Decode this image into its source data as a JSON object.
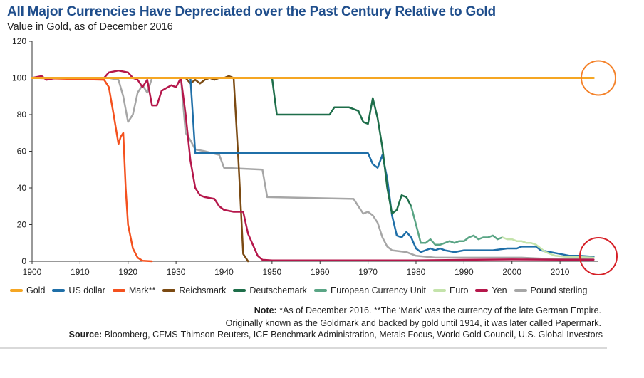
{
  "title": "All Major Currencies Have Depreciated over the Past Century Relative to Gold",
  "subtitle": "Value in Gold, as of December 2016",
  "note_label": "Note:",
  "note_line1": " *As of December 2016. **The ‘Mark’ was the currency of the late German Empire.",
  "note_line2": "Originally known as the Goldmark and backed by gold until 1914, it was later called Papermark.",
  "source_label": "Source:",
  "source_text": " Bloomberg, CFMS-Thimson Reuters, ICE Benchmark Administration, Metals Focus, World Gold Council, U.S. Global Investors",
  "chart_data": {
    "type": "line",
    "title": "All Major Currencies Have Depreciated over the Past Century Relative to Gold",
    "subtitle": "Value in Gold, as of December 2016",
    "xlim": [
      1900,
      2018
    ],
    "ylim": [
      0,
      120
    ],
    "xticks": [
      1900,
      1910,
      1920,
      1930,
      1940,
      1950,
      1960,
      1970,
      1980,
      1990,
      2000,
      2010
    ],
    "yticks": [
      0,
      20,
      40,
      60,
      80,
      100,
      120
    ],
    "grid": false,
    "legend_position": "bottom",
    "series": [
      {
        "name": "Gold",
        "color": "#f5a623",
        "width": 3,
        "points": [
          [
            1900,
            100
          ],
          [
            2017,
            100
          ]
        ]
      },
      {
        "name": "Pound sterling",
        "color": "#a6a6a6",
        "width": 2.5,
        "points": [
          [
            1916,
            100
          ],
          [
            1918,
            99
          ],
          [
            1919,
            90
          ],
          [
            1920,
            76
          ],
          [
            1921,
            80
          ],
          [
            1922,
            92
          ],
          [
            1923,
            96
          ],
          [
            1924,
            92
          ],
          [
            1925,
            100
          ],
          [
            1931,
            100
          ],
          [
            1932,
            70
          ],
          [
            1933,
            66
          ],
          [
            1934,
            61
          ],
          [
            1936,
            60
          ],
          [
            1939,
            58
          ],
          [
            1940,
            51
          ],
          [
            1948,
            50
          ],
          [
            1949,
            35
          ],
          [
            1967,
            34
          ],
          [
            1968,
            30
          ],
          [
            1969,
            26
          ],
          [
            1970,
            27
          ],
          [
            1971,
            25
          ],
          [
            1972,
            21
          ],
          [
            1973,
            13
          ],
          [
            1974,
            8
          ],
          [
            1975,
            6
          ],
          [
            1978,
            5
          ],
          [
            1980,
            3
          ],
          [
            1984,
            2
          ],
          [
            1988,
            2
          ],
          [
            1995,
            2
          ],
          [
            2002,
            2
          ],
          [
            2008,
            1.2
          ],
          [
            2017,
            1
          ]
        ]
      },
      {
        "name": "Reichsmark",
        "color": "#7b4a12",
        "width": 2.5,
        "points": [
          [
            1932,
            100
          ],
          [
            1933,
            97
          ],
          [
            1934,
            99
          ],
          [
            1935,
            97
          ],
          [
            1936,
            99
          ],
          [
            1937,
            100
          ],
          [
            1938,
            99
          ],
          [
            1939,
            100
          ],
          [
            1940,
            100
          ],
          [
            1941,
            101
          ],
          [
            1942,
            100
          ],
          [
            1943,
            55
          ],
          [
            1944,
            4
          ],
          [
            1945,
            0
          ]
        ]
      },
      {
        "name": "Mark**",
        "color": "#f4511e",
        "width": 2.5,
        "points": [
          [
            1900,
            100
          ],
          [
            1915,
            99
          ],
          [
            1916,
            95
          ],
          [
            1917,
            80
          ],
          [
            1918,
            64
          ],
          [
            1918.5,
            68
          ],
          [
            1919,
            70
          ],
          [
            1919.5,
            40
          ],
          [
            1920,
            20
          ],
          [
            1921,
            7
          ],
          [
            1922,
            2
          ],
          [
            1923,
            0.3
          ],
          [
            1925,
            0
          ]
        ]
      },
      {
        "name": "Yen",
        "color": "#b5174b",
        "width": 2.5,
        "points": [
          [
            1900,
            100
          ],
          [
            1902,
            101
          ],
          [
            1903,
            99
          ],
          [
            1905,
            100
          ],
          [
            1910,
            100
          ],
          [
            1915,
            100
          ],
          [
            1916,
            103
          ],
          [
            1918,
            104
          ],
          [
            1920,
            103
          ],
          [
            1921,
            100
          ],
          [
            1922,
            99
          ],
          [
            1923,
            95
          ],
          [
            1924,
            99
          ],
          [
            1925,
            85
          ],
          [
            1926,
            85
          ],
          [
            1927,
            93
          ],
          [
            1929,
            96
          ],
          [
            1930,
            95
          ],
          [
            1931,
            100
          ],
          [
            1932,
            80
          ],
          [
            1933,
            55
          ],
          [
            1934,
            40
          ],
          [
            1935,
            36
          ],
          [
            1936,
            35
          ],
          [
            1938,
            34
          ],
          [
            1939,
            30
          ],
          [
            1940,
            28
          ],
          [
            1942,
            27
          ],
          [
            1944,
            27
          ],
          [
            1945,
            15
          ],
          [
            1947,
            3
          ],
          [
            1948,
            0.8
          ],
          [
            1950,
            0.5
          ],
          [
            1960,
            0.5
          ],
          [
            1970,
            0.5
          ],
          [
            1980,
            0.5
          ],
          [
            1990,
            0.8
          ],
          [
            2000,
            1
          ],
          [
            2010,
            0.9
          ],
          [
            2017,
            0.9
          ]
        ]
      },
      {
        "name": "US dollar",
        "color": "#1f6fa8",
        "width": 2.5,
        "points": [
          [
            1933,
            100
          ],
          [
            1934,
            59
          ],
          [
            1970,
            59
          ],
          [
            1971,
            53
          ],
          [
            1972,
            51
          ],
          [
            1973,
            58
          ],
          [
            1974,
            45
          ],
          [
            1975,
            25
          ],
          [
            1976,
            14
          ],
          [
            1977,
            13
          ],
          [
            1978,
            16
          ],
          [
            1979,
            13
          ],
          [
            1980,
            7
          ],
          [
            1981,
            5
          ],
          [
            1982,
            6
          ],
          [
            1983,
            7
          ],
          [
            1984,
            6
          ],
          [
            1985,
            7
          ],
          [
            1986,
            6
          ],
          [
            1988,
            5
          ],
          [
            1990,
            6
          ],
          [
            1993,
            6
          ],
          [
            1996,
            6
          ],
          [
            1999,
            7
          ],
          [
            2001,
            7
          ],
          [
            2002,
            8
          ],
          [
            2005,
            8
          ],
          [
            2006,
            6
          ],
          [
            2008,
            5
          ],
          [
            2010,
            4
          ],
          [
            2012,
            3
          ],
          [
            2014,
            3
          ],
          [
            2017,
            2.5
          ]
        ]
      },
      {
        "name": "Deutschemark",
        "color": "#1e6e4a",
        "width": 2.5,
        "points": [
          [
            1950,
            100
          ],
          [
            1951,
            80
          ],
          [
            1962,
            80
          ],
          [
            1963,
            84
          ],
          [
            1966,
            84
          ],
          [
            1968,
            82
          ],
          [
            1969,
            76
          ],
          [
            1970,
            75
          ],
          [
            1971,
            89
          ],
          [
            1972,
            78
          ],
          [
            1973,
            62
          ],
          [
            1974,
            40
          ],
          [
            1975,
            26
          ],
          [
            1976,
            28
          ],
          [
            1977,
            36
          ],
          [
            1978,
            35
          ],
          [
            1979,
            30
          ]
        ]
      },
      {
        "name": "European Currency Unit",
        "color": "#5aa585",
        "width": 2.5,
        "points": [
          [
            1979,
            30
          ],
          [
            1980,
            20
          ],
          [
            1981,
            10
          ],
          [
            1982,
            10
          ],
          [
            1983,
            12
          ],
          [
            1984,
            9
          ],
          [
            1985,
            9
          ],
          [
            1986,
            10
          ],
          [
            1987,
            11
          ],
          [
            1988,
            10
          ],
          [
            1989,
            11
          ],
          [
            1990,
            11
          ],
          [
            1991,
            13
          ],
          [
            1992,
            14
          ],
          [
            1993,
            12
          ],
          [
            1994,
            13
          ],
          [
            1995,
            13
          ],
          [
            1996,
            14
          ],
          [
            1997,
            12
          ],
          [
            1998,
            13
          ]
        ]
      },
      {
        "name": "Euro",
        "color": "#c4e3ab",
        "width": 2.5,
        "points": [
          [
            1998,
            13
          ],
          [
            1999,
            12
          ],
          [
            2000,
            12
          ],
          [
            2001,
            11
          ],
          [
            2002,
            11
          ],
          [
            2003,
            10
          ],
          [
            2004,
            10
          ],
          [
            2005,
            9
          ],
          [
            2006,
            7
          ],
          [
            2007,
            5
          ],
          [
            2008,
            4
          ],
          [
            2009,
            3
          ],
          [
            2011,
            2.5
          ],
          [
            2014,
            2.3
          ],
          [
            2017,
            2
          ]
        ]
      }
    ],
    "annotations": [
      {
        "type": "circle",
        "color": "#f4822a",
        "at": "Gold line right end"
      },
      {
        "type": "circle",
        "color": "#d62027",
        "at": "currencies right end near zero"
      }
    ]
  },
  "legend": [
    {
      "label": "Gold",
      "color": "#f5a623"
    },
    {
      "label": "US dollar",
      "color": "#1f6fa8"
    },
    {
      "label": "Mark**",
      "color": "#f4511e"
    },
    {
      "label": "Reichsmark",
      "color": "#7b4a12"
    },
    {
      "label": "Deutschemark",
      "color": "#1e6e4a"
    },
    {
      "label": "European Currency Unit",
      "color": "#5aa585"
    },
    {
      "label": "Euro",
      "color": "#c4e3ab"
    },
    {
      "label": "Yen",
      "color": "#b5174b"
    },
    {
      "label": "Pound sterling",
      "color": "#a6a6a6"
    }
  ]
}
